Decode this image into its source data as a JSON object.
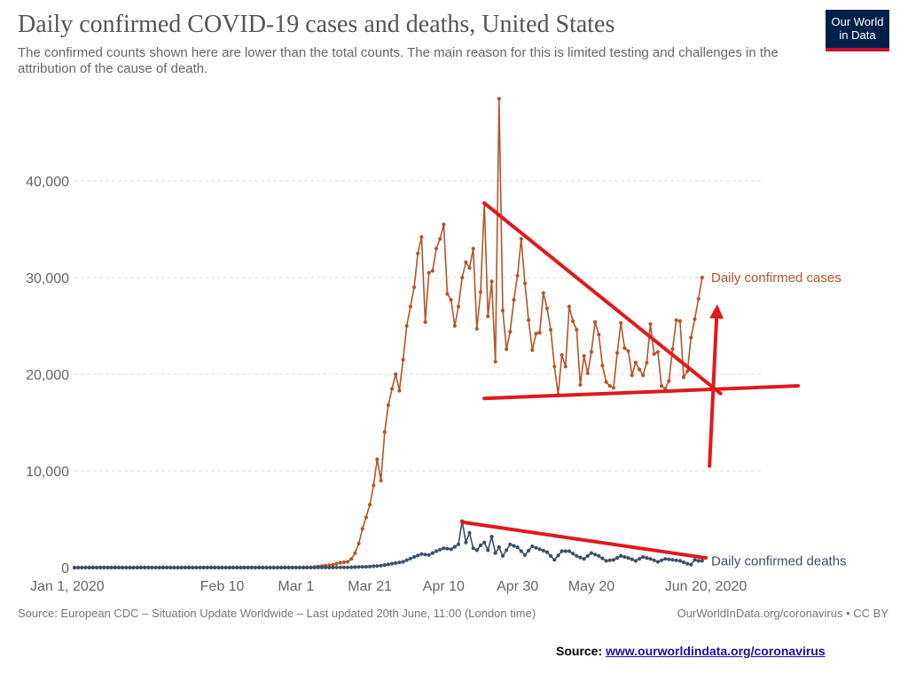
{
  "header": {
    "title": "Daily confirmed COVID-19 cases and deaths, United States",
    "subtitle": "The confirmed counts shown here are lower than the total counts. The main reason for this is limited testing and challenges in the attribution of the cause of death.",
    "logo": [
      "Our World",
      "in Data"
    ]
  },
  "footer": {
    "left": "Source: European CDC – Situation Update Worldwide – Last updated 20th June, 11:00 (London time)",
    "right": "OurWorldInData.org/coronavirus • CC BY"
  },
  "source_note": {
    "label": "Source:",
    "link": "www.ourworldindata.org/coronavirus"
  },
  "chart_data": {
    "type": "line",
    "x_axis": {
      "type": "date",
      "range": [
        "2020-01-01",
        "2020-06-20"
      ],
      "ticks": [
        {
          "date": "2020-01-01",
          "label": "Jan 1, 2020"
        },
        {
          "date": "2020-02-10",
          "label": "Feb 10"
        },
        {
          "date": "2020-03-01",
          "label": "Mar 1"
        },
        {
          "date": "2020-03-21",
          "label": "Mar 21"
        },
        {
          "date": "2020-04-10",
          "label": "Apr 10"
        },
        {
          "date": "2020-04-30",
          "label": "Apr 30"
        },
        {
          "date": "2020-05-20",
          "label": "May 20"
        },
        {
          "date": "2020-06-20",
          "label": "Jun 20, 2020"
        }
      ]
    },
    "y_axis": {
      "range": [
        0,
        48000
      ],
      "ticks": [
        0,
        10000,
        20000,
        30000,
        40000
      ],
      "tick_labels": [
        "0",
        "10,000",
        "20,000",
        "30,000",
        "40,000"
      ],
      "grid": true
    },
    "series": [
      {
        "name": "Daily confirmed cases",
        "color": "#b5542a",
        "points": [
          [
            "2020-01-01",
            0
          ],
          [
            "2020-02-10",
            0
          ],
          [
            "2020-03-01",
            0
          ],
          [
            "2020-03-05",
            20
          ],
          [
            "2020-03-09",
            200
          ],
          [
            "2020-03-11",
            300
          ],
          [
            "2020-03-13",
            500
          ],
          [
            "2020-03-15",
            600
          ],
          [
            "2020-03-16",
            900
          ],
          [
            "2020-03-17",
            1500
          ],
          [
            "2020-03-18",
            2500
          ],
          [
            "2020-03-19",
            4000
          ],
          [
            "2020-03-20",
            5200
          ],
          [
            "2020-03-21",
            6500
          ],
          [
            "2020-03-22",
            8500
          ],
          [
            "2020-03-23",
            11200
          ],
          [
            "2020-03-24",
            9000
          ],
          [
            "2020-03-25",
            14000
          ],
          [
            "2020-03-26",
            16800
          ],
          [
            "2020-03-27",
            18500
          ],
          [
            "2020-03-28",
            20000
          ],
          [
            "2020-03-29",
            18300
          ],
          [
            "2020-03-30",
            21500
          ],
          [
            "2020-03-31",
            25000
          ],
          [
            "2020-04-01",
            27000
          ],
          [
            "2020-04-02",
            29000
          ],
          [
            "2020-04-03",
            32500
          ],
          [
            "2020-04-04",
            34200
          ],
          [
            "2020-04-05",
            25400
          ],
          [
            "2020-04-06",
            30500
          ],
          [
            "2020-04-07",
            30700
          ],
          [
            "2020-04-08",
            33000
          ],
          [
            "2020-04-09",
            34000
          ],
          [
            "2020-04-10",
            35500
          ],
          [
            "2020-04-11",
            28300
          ],
          [
            "2020-04-12",
            27700
          ],
          [
            "2020-04-13",
            25000
          ],
          [
            "2020-04-14",
            27000
          ],
          [
            "2020-04-15",
            30000
          ],
          [
            "2020-04-16",
            31600
          ],
          [
            "2020-04-17",
            31000
          ],
          [
            "2020-04-18",
            33000
          ],
          [
            "2020-04-19",
            24700
          ],
          [
            "2020-04-20",
            28500
          ],
          [
            "2020-04-21",
            37700
          ],
          [
            "2020-04-22",
            26000
          ],
          [
            "2020-04-23",
            29600
          ],
          [
            "2020-04-24",
            21300
          ],
          [
            "2020-04-25",
            48500
          ],
          [
            "2020-04-26",
            26600
          ],
          [
            "2020-04-27",
            22600
          ],
          [
            "2020-04-28",
            24400
          ],
          [
            "2020-04-29",
            27700
          ],
          [
            "2020-04-30",
            30200
          ],
          [
            "2020-05-01",
            34000
          ],
          [
            "2020-05-02",
            29400
          ],
          [
            "2020-05-03",
            25600
          ],
          [
            "2020-05-04",
            22500
          ],
          [
            "2020-05-05",
            24200
          ],
          [
            "2020-05-06",
            24300
          ],
          [
            "2020-05-07",
            28400
          ],
          [
            "2020-05-08",
            26800
          ],
          [
            "2020-05-09",
            24600
          ],
          [
            "2020-05-10",
            20800
          ],
          [
            "2020-05-11",
            17900
          ],
          [
            "2020-05-12",
            22000
          ],
          [
            "2020-05-13",
            20800
          ],
          [
            "2020-05-14",
            27000
          ],
          [
            "2020-05-15",
            25500
          ],
          [
            "2020-05-16",
            24600
          ],
          [
            "2020-05-17",
            18900
          ],
          [
            "2020-05-18",
            21900
          ],
          [
            "2020-05-19",
            20100
          ],
          [
            "2020-05-20",
            22300
          ],
          [
            "2020-05-21",
            25400
          ],
          [
            "2020-05-22",
            24100
          ],
          [
            "2020-05-23",
            20900
          ],
          [
            "2020-05-24",
            19200
          ],
          [
            "2020-05-25",
            18800
          ],
          [
            "2020-05-26",
            18600
          ],
          [
            "2020-05-27",
            22200
          ],
          [
            "2020-05-28",
            25300
          ],
          [
            "2020-05-29",
            22700
          ],
          [
            "2020-05-30",
            22400
          ],
          [
            "2020-05-31",
            19900
          ],
          [
            "2020-06-01",
            21200
          ],
          [
            "2020-06-02",
            20500
          ],
          [
            "2020-06-03",
            19900
          ],
          [
            "2020-06-04",
            21200
          ],
          [
            "2020-06-05",
            25200
          ],
          [
            "2020-06-06",
            22100
          ],
          [
            "2020-06-07",
            22300
          ],
          [
            "2020-06-08",
            18800
          ],
          [
            "2020-06-09",
            18500
          ],
          [
            "2020-06-10",
            19300
          ],
          [
            "2020-06-11",
            22600
          ],
          [
            "2020-06-12",
            25600
          ],
          [
            "2020-06-13",
            25500
          ],
          [
            "2020-06-14",
            19700
          ],
          [
            "2020-06-15",
            20300
          ],
          [
            "2020-06-16",
            23800
          ],
          [
            "2020-06-17",
            25700
          ],
          [
            "2020-06-18",
            27800
          ],
          [
            "2020-06-19",
            30000
          ]
        ]
      },
      {
        "name": "Daily confirmed deaths",
        "color": "#3d4f66",
        "points": [
          [
            "2020-01-01",
            0
          ],
          [
            "2020-03-01",
            0
          ],
          [
            "2020-03-10",
            10
          ],
          [
            "2020-03-15",
            20
          ],
          [
            "2020-03-18",
            60
          ],
          [
            "2020-03-21",
            100
          ],
          [
            "2020-03-24",
            200
          ],
          [
            "2020-03-27",
            400
          ],
          [
            "2020-03-30",
            600
          ],
          [
            "2020-04-02",
            1100
          ],
          [
            "2020-04-04",
            1400
          ],
          [
            "2020-04-06",
            1300
          ],
          [
            "2020-04-08",
            1700
          ],
          [
            "2020-04-10",
            2000
          ],
          [
            "2020-04-12",
            1900
          ],
          [
            "2020-04-14",
            2400
          ],
          [
            "2020-04-15",
            4800
          ],
          [
            "2020-04-16",
            2600
          ],
          [
            "2020-04-17",
            3600
          ],
          [
            "2020-04-18",
            2000
          ],
          [
            "2020-04-19",
            1800
          ],
          [
            "2020-04-20",
            2300
          ],
          [
            "2020-04-21",
            2600
          ],
          [
            "2020-04-22",
            1800
          ],
          [
            "2020-04-23",
            3200
          ],
          [
            "2020-04-24",
            1500
          ],
          [
            "2020-04-25",
            2100
          ],
          [
            "2020-04-26",
            1200
          ],
          [
            "2020-04-28",
            2400
          ],
          [
            "2020-04-30",
            2100
          ],
          [
            "2020-05-02",
            1300
          ],
          [
            "2020-05-04",
            2200
          ],
          [
            "2020-05-06",
            1900
          ],
          [
            "2020-05-08",
            1600
          ],
          [
            "2020-05-10",
            800
          ],
          [
            "2020-05-12",
            1700
          ],
          [
            "2020-05-14",
            1700
          ],
          [
            "2020-05-16",
            1200
          ],
          [
            "2020-05-18",
            900
          ],
          [
            "2020-05-20",
            1500
          ],
          [
            "2020-05-22",
            1200
          ],
          [
            "2020-05-24",
            700
          ],
          [
            "2020-05-26",
            800
          ],
          [
            "2020-05-28",
            1200
          ],
          [
            "2020-05-30",
            1000
          ],
          [
            "2020-06-01",
            700
          ],
          [
            "2020-06-03",
            1100
          ],
          [
            "2020-06-05",
            900
          ],
          [
            "2020-06-07",
            600
          ],
          [
            "2020-06-09",
            900
          ],
          [
            "2020-06-11",
            800
          ],
          [
            "2020-06-13",
            700
          ],
          [
            "2020-06-15",
            400
          ],
          [
            "2020-06-16",
            300
          ],
          [
            "2020-06-17",
            800
          ],
          [
            "2020-06-18",
            700
          ],
          [
            "2020-06-19",
            700
          ]
        ]
      }
    ],
    "annotations": [
      {
        "type": "trend-line",
        "color": "#e0191b",
        "from": [
          "2020-04-21",
          37700
        ],
        "to": [
          "2020-06-24",
          18000
        ]
      },
      {
        "type": "trend-line",
        "color": "#e0191b",
        "from": [
          "2020-04-21",
          17500
        ],
        "to": [
          "2020-07-15",
          18800
        ]
      },
      {
        "type": "trend-line",
        "color": "#e0191b",
        "from": [
          "2020-04-15",
          4700
        ],
        "to": [
          "2020-06-20",
          1000
        ]
      },
      {
        "type": "arrow",
        "color": "#e0191b",
        "from": [
          "2020-06-21",
          10500
        ],
        "to": [
          "2020-06-23",
          26500
        ]
      }
    ]
  }
}
